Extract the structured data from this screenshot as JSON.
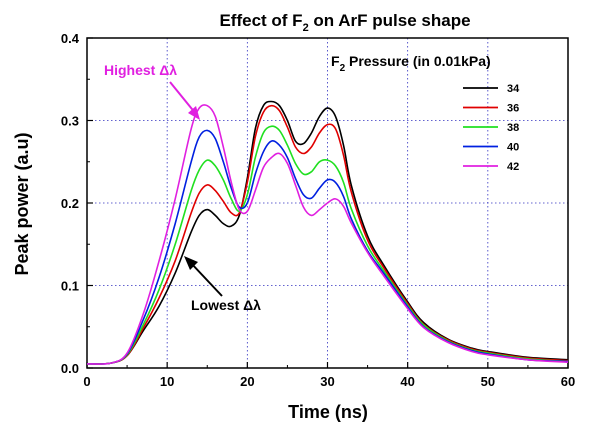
{
  "chart_data": {
    "type": "line",
    "title": "Effect of F",
    "title_sub": "2",
    "title_rest": " on ArF pulse shape",
    "xlabel": "Time (ns)",
    "ylabel": "Peak power (a.u)",
    "xlim": [
      0,
      60
    ],
    "ylim": [
      0,
      0.4
    ],
    "xticks": [
      0,
      10,
      20,
      30,
      40,
      50,
      60
    ],
    "xtick_labels": [
      "0",
      "10",
      "20",
      "30",
      "40",
      "50",
      "60"
    ],
    "yticks": [
      0.0,
      0.1,
      0.2,
      0.3,
      0.4
    ],
    "ytick_labels": [
      "0.0",
      "0.1",
      "0.2",
      "0.3",
      "0.4"
    ],
    "grid": "dotted-blue",
    "legend": {
      "title_prefix": "F",
      "title_sub": "2",
      "title_rest": " Pressure (in 0.01kPa)",
      "placement": "top-right"
    },
    "annotations": [
      {
        "text": "Highest Δλ",
        "color": "#e020e0",
        "target_series": "42"
      },
      {
        "text": "Lowest Δλ",
        "color": "#000000",
        "target_series": "34"
      }
    ],
    "series": [
      {
        "name": "34",
        "color": "#000000",
        "x": [
          0,
          3,
          5,
          7,
          9,
          11,
          13,
          14,
          15,
          16,
          17,
          18,
          19,
          20,
          21,
          22,
          23,
          24,
          25,
          26,
          27,
          28,
          29,
          30,
          31,
          32,
          33,
          35,
          37,
          40,
          42,
          45,
          48,
          50,
          55,
          60
        ],
        "y": [
          0.005,
          0.006,
          0.015,
          0.045,
          0.075,
          0.115,
          0.165,
          0.185,
          0.192,
          0.185,
          0.175,
          0.172,
          0.185,
          0.23,
          0.29,
          0.318,
          0.323,
          0.318,
          0.3,
          0.275,
          0.272,
          0.285,
          0.305,
          0.315,
          0.305,
          0.27,
          0.22,
          0.16,
          0.125,
          0.08,
          0.055,
          0.035,
          0.024,
          0.02,
          0.013,
          0.01
        ]
      },
      {
        "name": "36",
        "color": "#e00000",
        "x": [
          0,
          3,
          5,
          7,
          9,
          11,
          13,
          14,
          15,
          16,
          17,
          18,
          19,
          20,
          21,
          22,
          23,
          24,
          25,
          26,
          27,
          28,
          29,
          30,
          31,
          32,
          33,
          35,
          37,
          40,
          42,
          45,
          48,
          50,
          55,
          60
        ],
        "y": [
          0.005,
          0.006,
          0.015,
          0.048,
          0.085,
          0.13,
          0.188,
          0.212,
          0.222,
          0.215,
          0.202,
          0.188,
          0.188,
          0.225,
          0.28,
          0.31,
          0.318,
          0.312,
          0.292,
          0.268,
          0.26,
          0.268,
          0.285,
          0.295,
          0.29,
          0.258,
          0.212,
          0.155,
          0.122,
          0.078,
          0.053,
          0.034,
          0.023,
          0.019,
          0.012,
          0.009
        ]
      },
      {
        "name": "38",
        "color": "#20e020",
        "x": [
          0,
          3,
          5,
          7,
          9,
          11,
          13,
          14,
          15,
          16,
          17,
          18,
          19,
          20,
          21,
          22,
          23,
          24,
          25,
          26,
          27,
          28,
          29,
          30,
          31,
          32,
          33,
          35,
          37,
          40,
          42,
          45,
          48,
          50,
          55,
          60
        ],
        "y": [
          0.005,
          0.006,
          0.016,
          0.052,
          0.095,
          0.15,
          0.215,
          0.24,
          0.252,
          0.245,
          0.228,
          0.205,
          0.19,
          0.21,
          0.255,
          0.285,
          0.293,
          0.288,
          0.27,
          0.248,
          0.235,
          0.238,
          0.25,
          0.252,
          0.245,
          0.225,
          0.192,
          0.148,
          0.118,
          0.076,
          0.052,
          0.033,
          0.022,
          0.018,
          0.011,
          0.008
        ]
      },
      {
        "name": "40",
        "color": "#0020e0",
        "x": [
          0,
          3,
          5,
          7,
          9,
          11,
          13,
          14,
          15,
          16,
          17,
          18,
          19,
          20,
          21,
          22,
          23,
          24,
          25,
          26,
          27,
          28,
          29,
          30,
          31,
          32,
          33,
          35,
          37,
          40,
          42,
          45,
          48,
          50,
          55,
          60
        ],
        "y": [
          0.005,
          0.006,
          0.017,
          0.058,
          0.11,
          0.175,
          0.25,
          0.28,
          0.288,
          0.278,
          0.25,
          0.218,
          0.195,
          0.2,
          0.235,
          0.262,
          0.275,
          0.27,
          0.255,
          0.23,
          0.21,
          0.206,
          0.218,
          0.228,
          0.225,
          0.208,
          0.18,
          0.142,
          0.115,
          0.074,
          0.05,
          0.032,
          0.021,
          0.017,
          0.01,
          0.008
        ]
      },
      {
        "name": "42",
        "color": "#e020e0",
        "x": [
          0,
          3,
          5,
          7,
          9,
          11,
          13,
          14,
          15,
          16,
          17,
          18,
          19,
          20,
          21,
          22,
          23,
          24,
          25,
          26,
          27,
          28,
          29,
          30,
          31,
          32,
          33,
          35,
          37,
          40,
          42,
          45,
          48,
          50,
          55,
          60
        ],
        "y": [
          0.005,
          0.006,
          0.018,
          0.065,
          0.13,
          0.205,
          0.29,
          0.315,
          0.318,
          0.305,
          0.268,
          0.225,
          0.192,
          0.19,
          0.215,
          0.243,
          0.255,
          0.26,
          0.248,
          0.222,
          0.195,
          0.185,
          0.192,
          0.2,
          0.205,
          0.196,
          0.175,
          0.14,
          0.112,
          0.072,
          0.049,
          0.031,
          0.02,
          0.016,
          0.01,
          0.007
        ]
      }
    ]
  }
}
